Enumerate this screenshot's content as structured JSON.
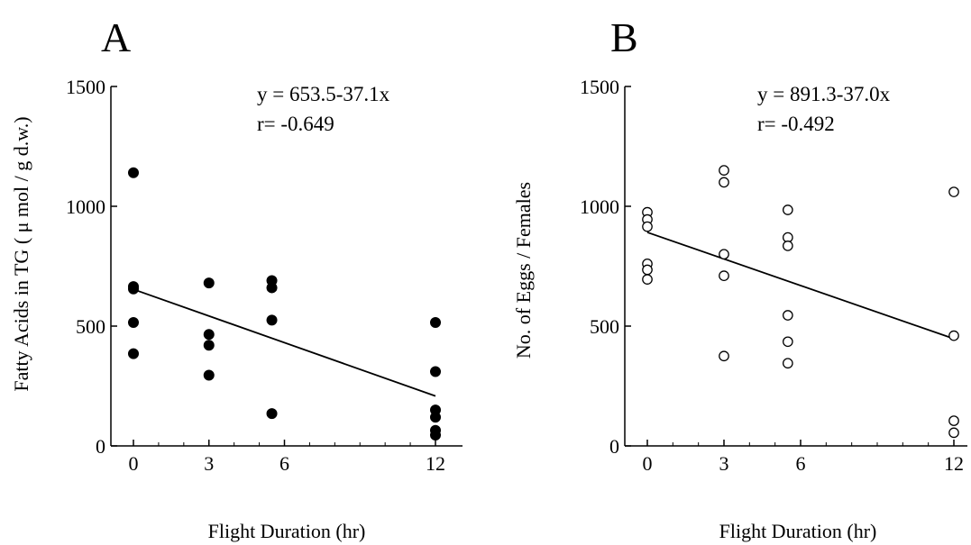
{
  "chart_data": [
    {
      "type": "scatter",
      "panel_label": "A",
      "title": "",
      "xlabel": "Flight Duration (hr)",
      "ylabel": "Fatty Acids in TG ( μ mol / g d.w.)",
      "ylim": [
        0,
        1500
      ],
      "x_ticks": [
        "0",
        "3",
        "6",
        "12"
      ],
      "y_ticks": [
        "0",
        "500",
        "1000",
        "1500"
      ],
      "marker": "filled",
      "grid": false,
      "legend": "none",
      "annotation": {
        "equation": "y = 653.5-37.1x",
        "r": "r= -0.649"
      },
      "regression": {
        "intercept": 653.5,
        "slope": -37.1,
        "x_range": [
          0,
          12
        ]
      },
      "points": [
        {
          "x": 0,
          "y": 1140
        },
        {
          "x": 0,
          "y": 665
        },
        {
          "x": 0,
          "y": 655
        },
        {
          "x": 0,
          "y": 515
        },
        {
          "x": 0,
          "y": 385
        },
        {
          "x": 3,
          "y": 680
        },
        {
          "x": 3,
          "y": 465
        },
        {
          "x": 3,
          "y": 420
        },
        {
          "x": 3,
          "y": 295
        },
        {
          "x": 5.5,
          "y": 690
        },
        {
          "x": 5.5,
          "y": 660
        },
        {
          "x": 5.5,
          "y": 525
        },
        {
          "x": 5.5,
          "y": 135
        },
        {
          "x": 12,
          "y": 515
        },
        {
          "x": 12,
          "y": 310
        },
        {
          "x": 12,
          "y": 150
        },
        {
          "x": 12,
          "y": 120
        },
        {
          "x": 12,
          "y": 65
        },
        {
          "x": 12,
          "y": 45
        }
      ]
    },
    {
      "type": "scatter",
      "panel_label": "B",
      "title": "",
      "xlabel": "Flight Duration (hr)",
      "ylabel": "No. of Eggs / Females",
      "ylim": [
        0,
        1500
      ],
      "x_ticks": [
        "0",
        "3",
        "6",
        "12"
      ],
      "y_ticks": [
        "0",
        "500",
        "1000",
        "1500"
      ],
      "marker": "open",
      "grid": false,
      "legend": "none",
      "annotation": {
        "equation": "y = 891.3-37.0x",
        "r": "r= -0.492"
      },
      "regression": {
        "intercept": 891.3,
        "slope": -37.0,
        "x_range": [
          0,
          12
        ]
      },
      "points": [
        {
          "x": 0,
          "y": 975
        },
        {
          "x": 0,
          "y": 945
        },
        {
          "x": 0,
          "y": 915
        },
        {
          "x": 0,
          "y": 760
        },
        {
          "x": 0,
          "y": 735
        },
        {
          "x": 0,
          "y": 695
        },
        {
          "x": 3,
          "y": 1150
        },
        {
          "x": 3,
          "y": 1100
        },
        {
          "x": 3,
          "y": 800
        },
        {
          "x": 3,
          "y": 710
        },
        {
          "x": 3,
          "y": 375
        },
        {
          "x": 5.5,
          "y": 985
        },
        {
          "x": 5.5,
          "y": 870
        },
        {
          "x": 5.5,
          "y": 835
        },
        {
          "x": 5.5,
          "y": 545
        },
        {
          "x": 5.5,
          "y": 435
        },
        {
          "x": 5.5,
          "y": 345
        },
        {
          "x": 12,
          "y": 1060
        },
        {
          "x": 12,
          "y": 460
        },
        {
          "x": 12,
          "y": 105
        },
        {
          "x": 12,
          "y": 55
        }
      ]
    }
  ]
}
